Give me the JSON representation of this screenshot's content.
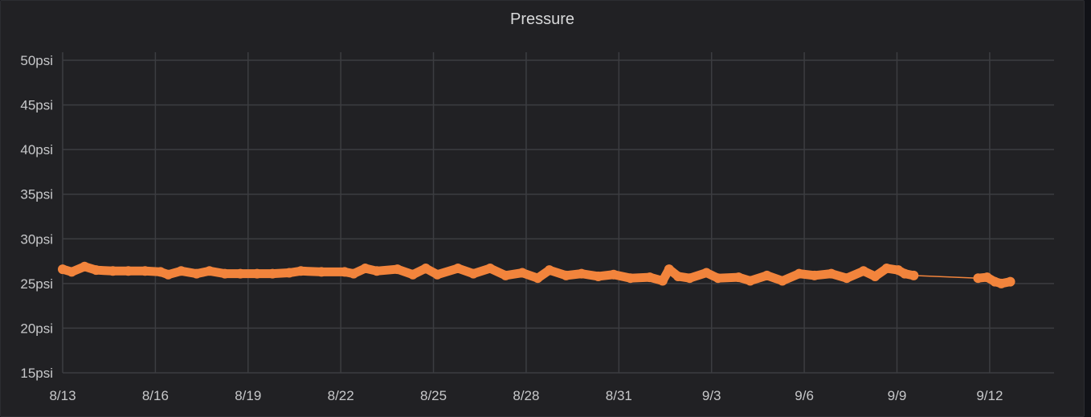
{
  "panel": {
    "title": "Pressure"
  },
  "chart_data": {
    "type": "line",
    "title": "Pressure",
    "xlabel": "",
    "ylabel": "",
    "y_unit": "psi",
    "ylim": [
      15,
      50
    ],
    "xlim": [
      "08-13 00:00",
      "09-14 02:00"
    ],
    "y_ticks": [
      "15psi",
      "20psi",
      "25psi",
      "30psi",
      "35psi",
      "40psi",
      "45psi",
      "50psi"
    ],
    "x_ticks": [
      "8/13",
      "8/16",
      "8/19",
      "8/22",
      "8/25",
      "8/28",
      "8/31",
      "9/3",
      "9/6",
      "9/9",
      "9/12"
    ],
    "grid": true,
    "legend": "none",
    "color": "#f2843c",
    "series": [
      {
        "points": [
          [
            "08-13 00:00",
            26.6
          ],
          [
            "08-13 07:00",
            26.3
          ],
          [
            "08-13 17:00",
            26.9
          ],
          [
            "08-14 02:00",
            26.5
          ],
          [
            "08-14 15:00",
            26.4
          ],
          [
            "08-15 03:00",
            26.4
          ],
          [
            "08-15 16:00",
            26.4
          ],
          [
            "08-16 04:00",
            26.3
          ],
          [
            "08-16 10:00",
            26.0
          ],
          [
            "08-16 20:00",
            26.4
          ],
          [
            "08-17 08:00",
            26.1
          ],
          [
            "08-17 18:00",
            26.4
          ],
          [
            "08-18 06:00",
            26.1
          ],
          [
            "08-18 18:00",
            26.1
          ],
          [
            "08-19 07:00",
            26.1
          ],
          [
            "08-19 19:00",
            26.1
          ],
          [
            "08-20 08:00",
            26.2
          ],
          [
            "08-20 17:00",
            26.4
          ],
          [
            "08-21 09:00",
            26.3
          ],
          [
            "08-22 03:00",
            26.3
          ],
          [
            "08-22 10:00",
            26.1
          ],
          [
            "08-22 19:00",
            26.7
          ],
          [
            "08-23 04:00",
            26.4
          ],
          [
            "08-23 20:00",
            26.6
          ],
          [
            "08-24 08:00",
            26.0
          ],
          [
            "08-24 18:00",
            26.7
          ],
          [
            "08-25 03:00",
            26.0
          ],
          [
            "08-25 19:00",
            26.7
          ],
          [
            "08-26 07:00",
            26.1
          ],
          [
            "08-26 20:00",
            26.7
          ],
          [
            "08-27 08:00",
            25.9
          ],
          [
            "08-27 21:00",
            26.2
          ],
          [
            "08-28 09:00",
            25.6
          ],
          [
            "08-28 18:00",
            26.5
          ],
          [
            "08-29 07:00",
            25.9
          ],
          [
            "08-29 19:00",
            26.1
          ],
          [
            "08-30 08:00",
            25.8
          ],
          [
            "08-30 20:00",
            26.0
          ],
          [
            "08-31 09:00",
            25.6
          ],
          [
            "09-01 00:00",
            25.7
          ],
          [
            "09-01 10:00",
            25.3
          ],
          [
            "09-01 15:00",
            26.6
          ],
          [
            "09-01 22:00",
            25.8
          ],
          [
            "09-02 07:00",
            25.6
          ],
          [
            "09-02 20:00",
            26.2
          ],
          [
            "09-03 05:00",
            25.6
          ],
          [
            "09-03 21:00",
            25.7
          ],
          [
            "09-04 06:00",
            25.3
          ],
          [
            "09-04 19:00",
            25.9
          ],
          [
            "09-05 07:00",
            25.3
          ],
          [
            "09-05 20:00",
            26.1
          ],
          [
            "09-06 08:00",
            25.9
          ],
          [
            "09-06 21:00",
            26.1
          ],
          [
            "09-07 09:00",
            25.6
          ],
          [
            "09-07 22:00",
            26.4
          ],
          [
            "09-08 07:00",
            25.8
          ],
          [
            "09-08 16:00",
            26.7
          ],
          [
            "09-09 01:00",
            26.5
          ],
          [
            "09-09 06:00",
            26.1
          ],
          [
            "09-09 13:00",
            25.9
          ],
          [
            "09-11 15:00",
            25.6
          ],
          [
            "09-11 22:00",
            25.7
          ],
          [
            "09-12 04:00",
            25.2
          ],
          [
            "09-12 09:00",
            25.0
          ],
          [
            "09-12 16:00",
            25.2
          ]
        ]
      }
    ]
  }
}
